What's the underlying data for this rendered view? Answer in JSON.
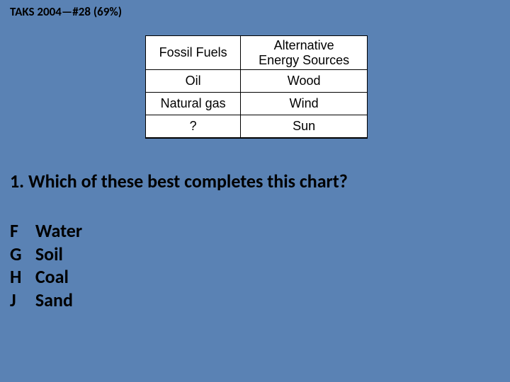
{
  "header": "TAKS 2004—#28 (69%)",
  "table": {
    "columns": [
      "Fossil Fuels",
      "Alternative\nEnergy Sources"
    ],
    "rows": [
      [
        "Oil",
        "Wood"
      ],
      [
        "Natural gas",
        "Wind"
      ],
      [
        "?",
        "Sun"
      ]
    ],
    "border_color": "#000000",
    "background_color": "#ffffff",
    "font_family": "Arial",
    "font_size_pt": 14
  },
  "question": "1. Which of these best completes this chart?",
  "choices": [
    {
      "letter": "F",
      "text": "Water"
    },
    {
      "letter": "G",
      "text": "Soil"
    },
    {
      "letter": "H",
      "text": "Coal"
    },
    {
      "letter": "J",
      "text": "Sand"
    }
  ],
  "colors": {
    "slide_background": "#5a82b4",
    "text": "#000000"
  },
  "fonts": {
    "body": "Calibri",
    "table": "Arial",
    "header_size_pt": 13,
    "question_size_pt": 20,
    "choice_size_pt": 20
  }
}
